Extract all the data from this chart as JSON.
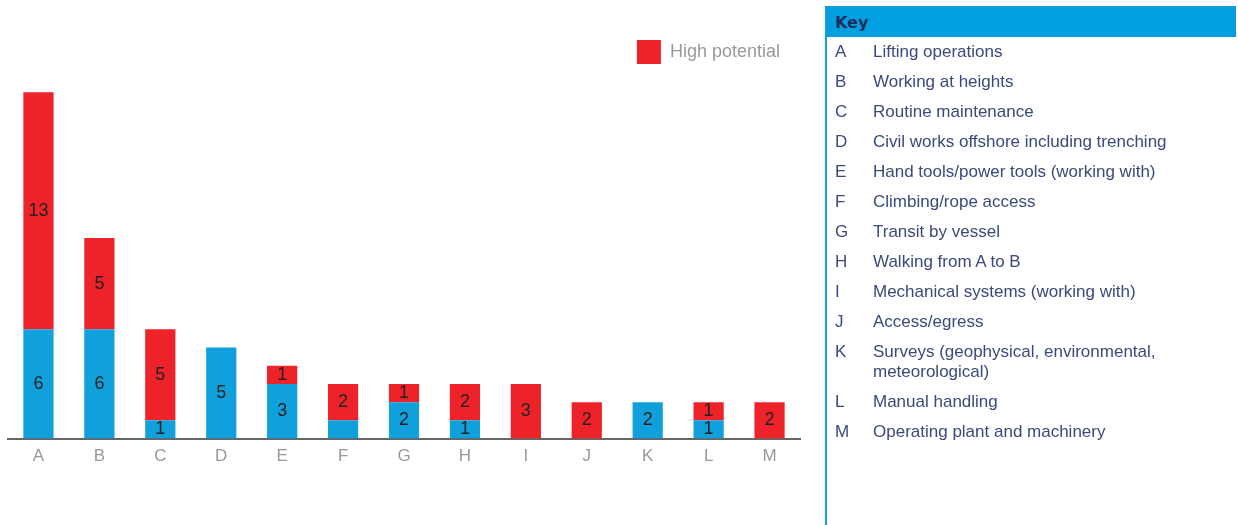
{
  "chart_data": [
    {
      "type": "bar",
      "stacked": true,
      "categories": [
        "A",
        "B",
        "C",
        "D",
        "E",
        "F",
        "G",
        "H",
        "I",
        "J",
        "K",
        "L",
        "M"
      ],
      "series": [
        {
          "color": "#10a0dc",
          "values": [
            6,
            6,
            1,
            5,
            3,
            1,
            2,
            1,
            0,
            0,
            2,
            1,
            0
          ],
          "value_labels": [
            "6",
            "6",
            "1",
            "5",
            "3",
            null,
            "2",
            "1",
            null,
            null,
            "2",
            "1",
            null
          ]
        },
        {
          "name": "High potential",
          "color": "#ee2229",
          "values": [
            13,
            5,
            5,
            0,
            1,
            2,
            1,
            2,
            3,
            2,
            0,
            1,
            2
          ],
          "value_labels": [
            "13",
            "5",
            "5",
            null,
            "1",
            "2",
            "1",
            "2",
            "3",
            "2",
            null,
            "1",
            "2"
          ]
        }
      ],
      "legend": "top right",
      "grid": false
    },
    {
      "type": "other",
      "title": "Key",
      "categories": [
        "A",
        "B",
        "C",
        "D",
        "E",
        "F",
        "G",
        "H",
        "I",
        "J",
        "K",
        "L",
        "M"
      ],
      "annotations": [
        "Lifting operations",
        "Working at heights",
        "Routine maintenance",
        "Civil works offshore including trenching",
        "Hand tools/power tools (working with)",
        "Climbing/rope access",
        "Transit by vessel",
        "Walking from A to B",
        "Mechanical systems (working with)",
        "Access/egress",
        "Surveys (geophysical, environmental, meteorological)",
        "Manual handling",
        "Operating plant and machinery"
      ]
    }
  ]
}
